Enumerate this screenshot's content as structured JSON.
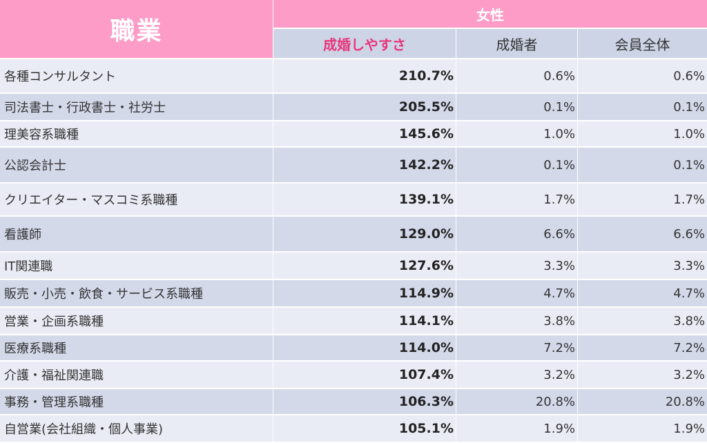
{
  "header": {
    "occupation": "職業",
    "female": "女性",
    "col_ease": "成婚しやすさ",
    "col_married": "成婚者",
    "col_all": "会員全体"
  },
  "rows": [
    {
      "name": "各種コンサルタント",
      "ease": "210.7%",
      "married": "0.6%",
      "all": "0.6%"
    },
    {
      "name": "司法書士・行政書士・社労士",
      "ease": "205.5%",
      "married": "0.1%",
      "all": "0.1%"
    },
    {
      "name": "理美容系職種",
      "ease": "145.6%",
      "married": "1.0%",
      "all": "1.0%"
    },
    {
      "name": "公認会計士",
      "ease": "142.2%",
      "married": "0.1%",
      "all": "0.1%"
    },
    {
      "name": "クリエイター・マスコミ系職種",
      "ease": "139.1%",
      "married": "1.7%",
      "all": "1.7%"
    },
    {
      "name": "看護師",
      "ease": "129.0%",
      "married": "6.6%",
      "all": "6.6%"
    },
    {
      "name": "IT関連職",
      "ease": "127.6%",
      "married": "3.3%",
      "all": "3.3%"
    },
    {
      "name": "販売・小売・飲食・サービス系職種",
      "ease": "114.9%",
      "married": "4.7%",
      "all": "4.7%"
    },
    {
      "name": "営業・企画系職種",
      "ease": "114.1%",
      "married": "3.8%",
      "all": "3.8%"
    },
    {
      "name": "医療系職種",
      "ease": "114.0%",
      "married": "7.2%",
      "all": "7.2%"
    },
    {
      "name": "介護・福祉関連職",
      "ease": "107.4%",
      "married": "3.2%",
      "all": "3.2%"
    },
    {
      "name": "事務・管理系職種",
      "ease": "106.3%",
      "married": "20.8%",
      "all": "20.8%"
    },
    {
      "name": "自営業(会社組織・個人事業)",
      "ease": "105.1%",
      "married": "1.9%",
      "all": "1.9%"
    }
  ]
}
